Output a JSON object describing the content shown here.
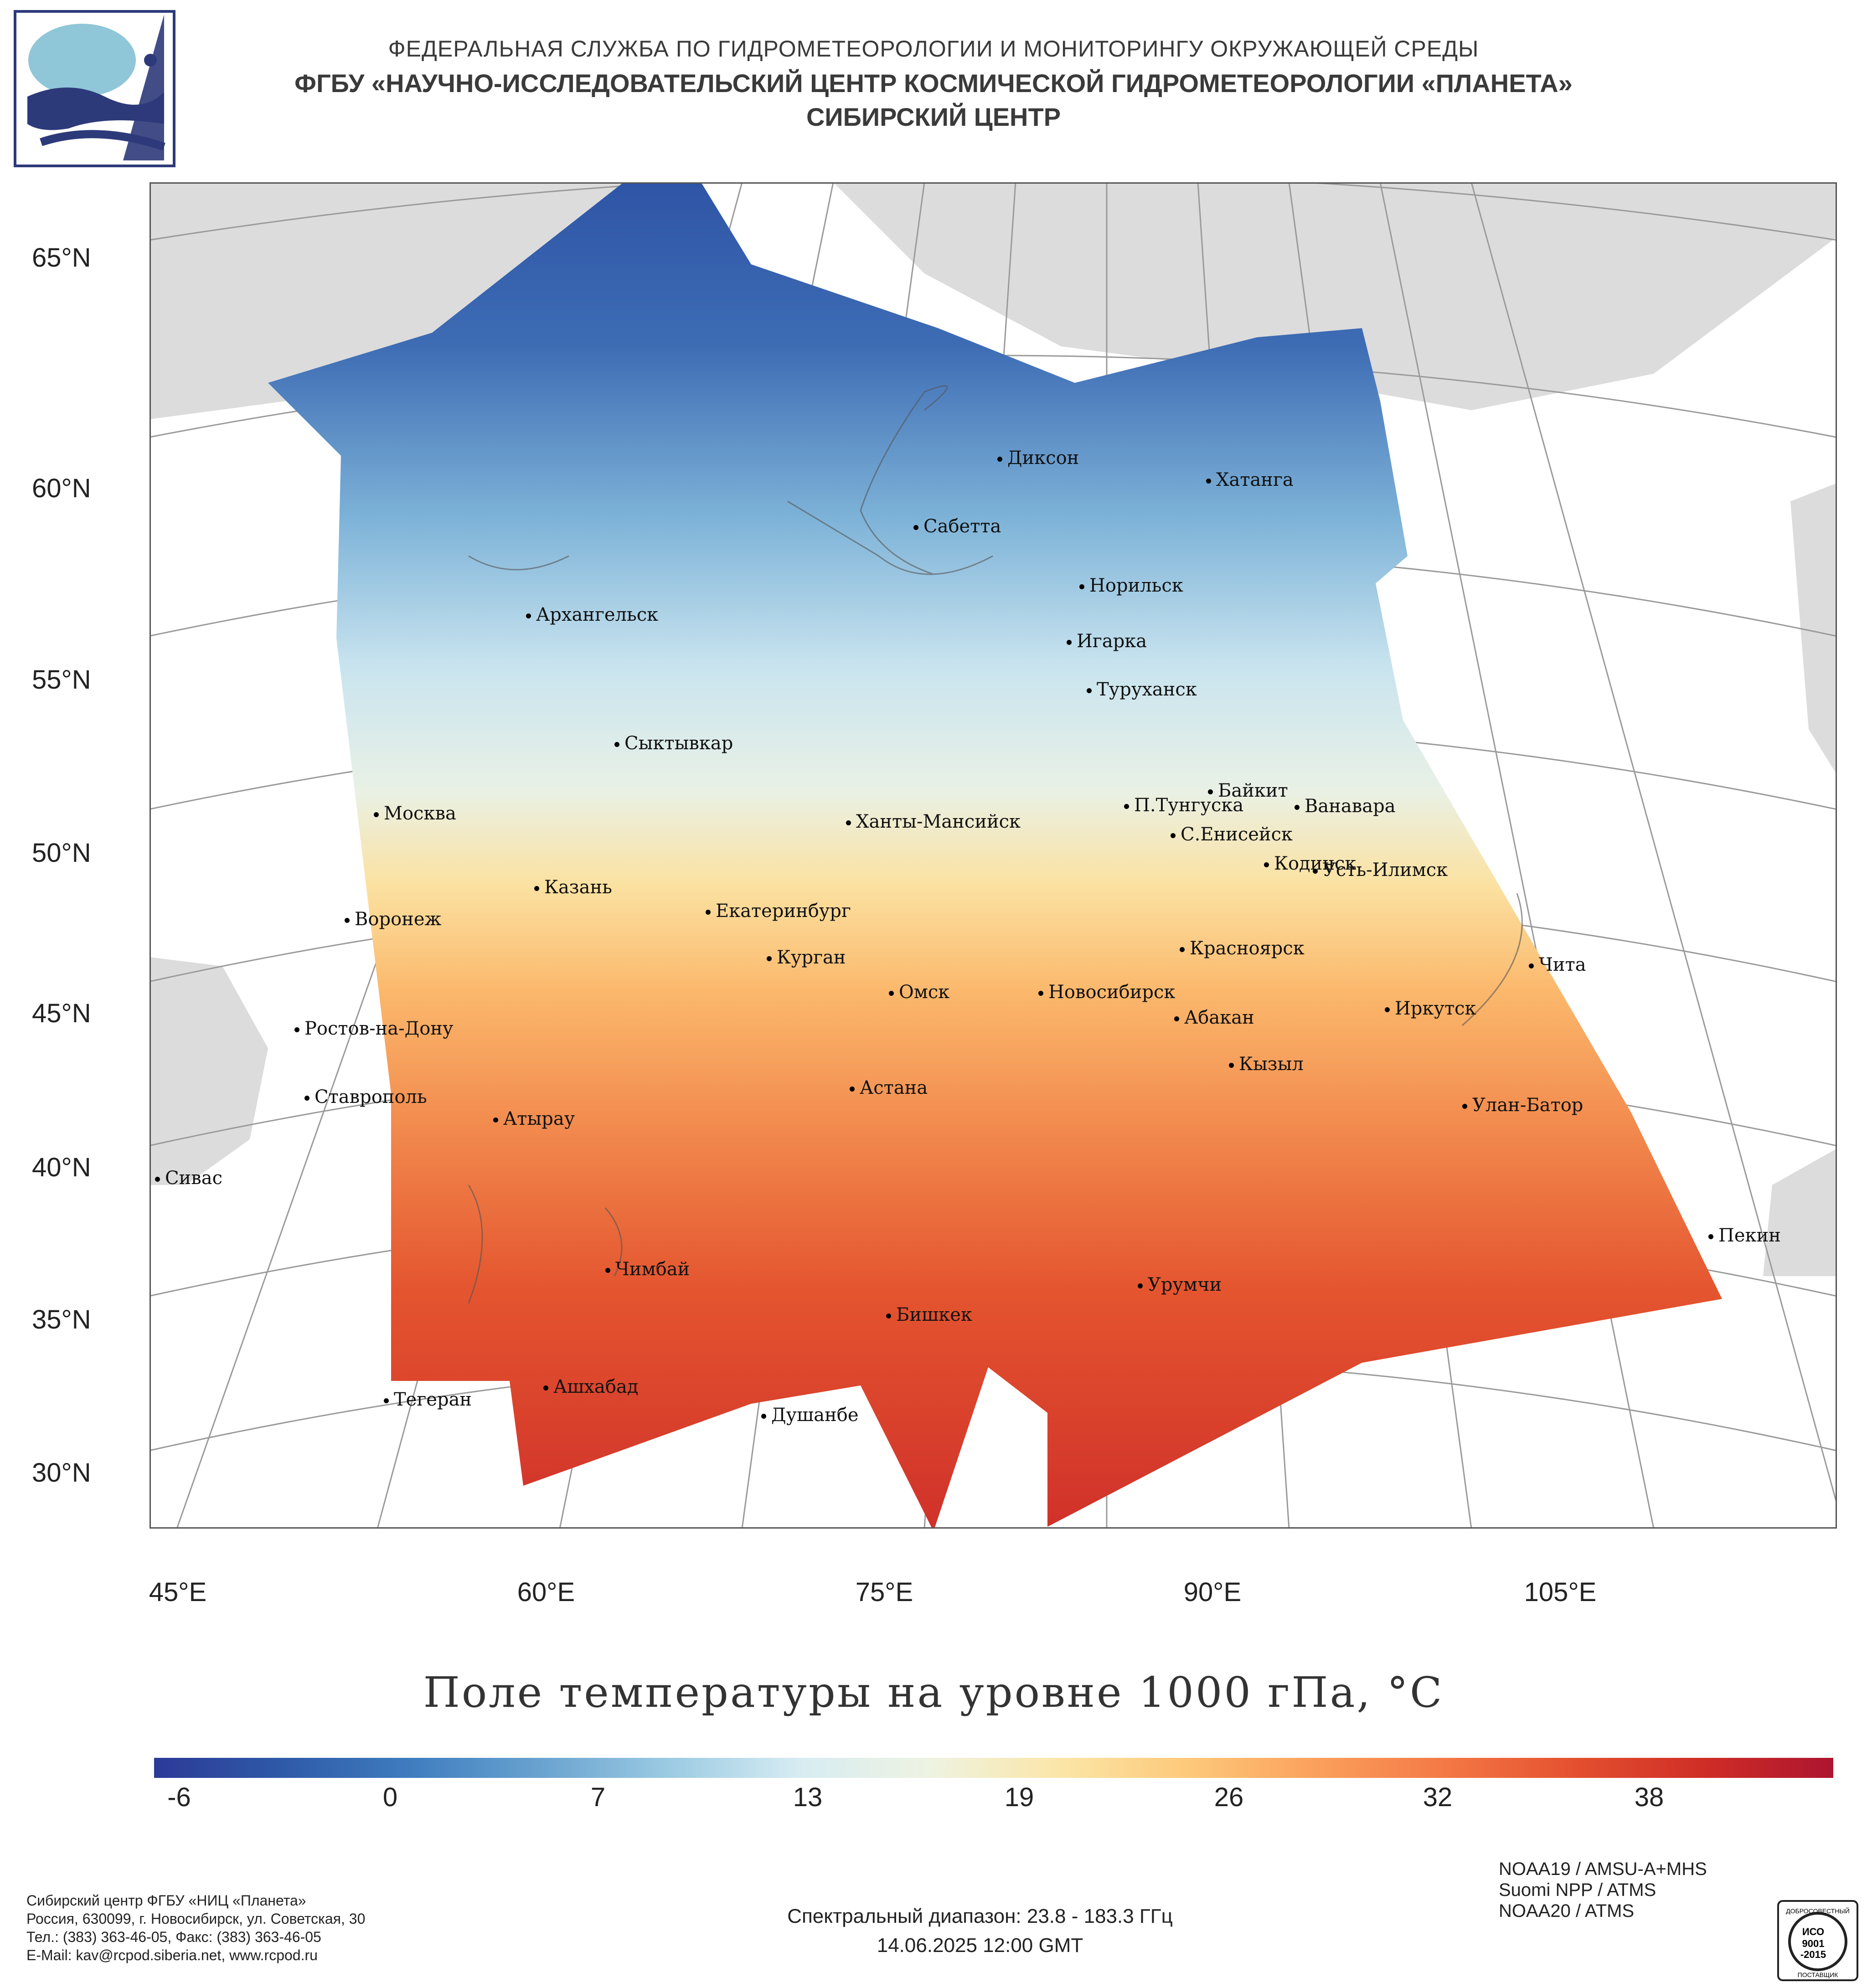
{
  "header": {
    "line1": "ФЕДЕРАЛЬНАЯ СЛУЖБА ПО ГИДРОМЕТЕОРОЛОГИИ И МОНИТОРИНГУ ОКРУЖАЮЩЕЙ СРЕДЫ",
    "line2": "ФГБУ «НАУЧНО-ИССЛЕДОВАТЕЛЬСКИЙ ЦЕНТР КОСМИЧЕСКОЙ ГИДРОМЕТЕОРОЛОГИИ «ПЛАНЕТА»",
    "line3": "СИБИРСКИЙ ЦЕНТР"
  },
  "map": {
    "title": "Поле температуры на уровне 1000 гПа, °C",
    "lat_labels": [
      "65°N",
      "60°N",
      "55°N",
      "50°N",
      "45°N",
      "40°N",
      "35°N",
      "30°N"
    ],
    "lon_labels": [
      "45°E",
      "60°E",
      "75°E",
      "90°E",
      "105°E"
    ],
    "cities": [
      "Диксон",
      "Хатанга",
      "Сабетта",
      "Норильск",
      "Архангельск",
      "Игарка",
      "Туруханск",
      "Сыктывкар",
      "Байкит",
      "Москва",
      "П.Тунгуска",
      "Ванавара",
      "Ханты-Мансийск",
      "С.Енисейск",
      "Кодинск",
      "Усть-Илимск",
      "Казань",
      "Екатеринбург",
      "Воронеж",
      "Красноярск",
      "Курган",
      "Чита",
      "Омск",
      "Новосибирск",
      "Иркутск",
      "Ростов-на-Дону",
      "Абакан",
      "Кызыл",
      "Ставрополь",
      "Астана",
      "Улан-Батор",
      "Атырау",
      "Сивас",
      "Пекин",
      "Чимбай",
      "Урумчи",
      "Бишкек",
      "Ашхабад",
      "Душанбе",
      "Тегеран"
    ]
  },
  "colorbar": {
    "ticks": [
      "-6",
      "0",
      "7",
      "13",
      "19",
      "26",
      "32",
      "38"
    ],
    "colors": [
      "#2b3a97",
      "#2f5aa8",
      "#3f7dbf",
      "#6aa3d0",
      "#9ccbe3",
      "#d7ecf2",
      "#eef3e2",
      "#fbe6a8",
      "#fdc97a",
      "#fba05c",
      "#f47845",
      "#e4502f",
      "#cf2d26",
      "#ad1530"
    ]
  },
  "footer": {
    "org": [
      "Сибирский центр ФГБУ «НИЦ «Планета»",
      "Россия, 630099, г. Новосибирск, ул. Советская, 30",
      "Тел.: (383) 363-46-05, Факс: (383) 363-46-05",
      "E-Mail: kav@rcpod.siberia.net, www.rcpod.ru"
    ],
    "spectral": "Спектральный диапазон: 23.8 - 183.3 ГГц",
    "datetime": "14.06.2025 12:00 GMT",
    "sensors": [
      "NOAA19 / AMSU-A+MHS",
      "Suomi NPP / ATMS",
      "NOAA20 / ATMS"
    ],
    "seal": [
      "ДОБРОСОВЕСТНЫЙ",
      "ИСО",
      "9001",
      "-2015",
      "ПОСТАВЩИК"
    ]
  }
}
